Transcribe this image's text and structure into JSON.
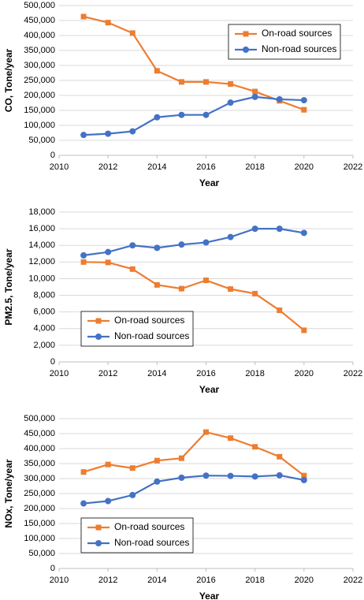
{
  "chart_data": [
    {
      "type": "line",
      "x_label": "Year",
      "y_label": "CO, Tone/year",
      "x": [
        2011,
        2012,
        2013,
        2014,
        2015,
        2016,
        2017,
        2018,
        2019,
        2020
      ],
      "series": [
        {
          "name": "On-road sources",
          "color": "#ed7d31",
          "marker": "square",
          "values": [
            463000,
            443000,
            408000,
            282000,
            245000,
            245000,
            238000,
            213000,
            182000,
            152000
          ]
        },
        {
          "name": "Non-road sources",
          "color": "#4472c4",
          "marker": "circle",
          "values": [
            68000,
            72000,
            80000,
            127000,
            135000,
            135000,
            176000,
            195000,
            187000,
            184000
          ]
        }
      ],
      "xlim": [
        2010,
        2022
      ],
      "xticks": [
        2010,
        2012,
        2014,
        2016,
        2018,
        2020,
        2022
      ],
      "ylim": [
        0,
        500000
      ],
      "yticks": [
        0,
        {
          "value": 50000,
          "label": "50,000"
        },
        {
          "value": 100000,
          "label": "100,000"
        },
        {
          "value": 150000,
          "label": "150,000"
        },
        {
          "value": 200000,
          "label": "200,000"
        },
        {
          "value": 250000,
          "label": "250,000"
        },
        {
          "value": 300000,
          "label": "300,000"
        },
        {
          "value": 350000,
          "label": "350,000"
        },
        {
          "value": 400000,
          "label": "400,000"
        },
        {
          "value": 450000,
          "label": "450,000"
        },
        {
          "value": 500000,
          "label": "500,000"
        }
      ],
      "grid": true,
      "legend_loc": "upper right"
    },
    {
      "type": "line",
      "x_label": "Year",
      "y_label": "PM2.5, Tone/year",
      "x": [
        2011,
        2012,
        2013,
        2014,
        2015,
        2016,
        2017,
        2018,
        2019,
        2020
      ],
      "series": [
        {
          "name": "On-road sources",
          "color": "#ed7d31",
          "marker": "square",
          "values": [
            12000,
            11950,
            11150,
            9250,
            8800,
            9800,
            8750,
            8200,
            6200,
            3800
          ]
        },
        {
          "name": "Non-road sources",
          "color": "#4472c4",
          "marker": "circle",
          "values": [
            12800,
            13200,
            14000,
            13700,
            14100,
            14350,
            15000,
            16000,
            16000,
            15500
          ]
        }
      ],
      "xlim": [
        2010,
        2022
      ],
      "xticks": [
        2010,
        2012,
        2014,
        2016,
        2018,
        2020,
        2022
      ],
      "ylim": [
        0,
        18000
      ],
      "yticks": [
        0,
        {
          "value": 2000,
          "label": "2,000"
        },
        {
          "value": 4000,
          "label": "4,000"
        },
        {
          "value": 6000,
          "label": "6,000"
        },
        {
          "value": 8000,
          "label": "8,000"
        },
        {
          "value": 10000,
          "label": "10,000"
        },
        {
          "value": 12000,
          "label": "12,000"
        },
        {
          "value": 14000,
          "label": "14,000"
        },
        {
          "value": 16000,
          "label": "16,000"
        },
        {
          "value": 18000,
          "label": "18,000"
        }
      ],
      "grid": true,
      "legend_loc": "lower left"
    },
    {
      "type": "line",
      "x_label": "Year",
      "y_label": "NOx, Tone/year",
      "x": [
        2011,
        2012,
        2013,
        2014,
        2015,
        2016,
        2017,
        2018,
        2019,
        2020
      ],
      "series": [
        {
          "name": "On-road sources",
          "color": "#ed7d31",
          "marker": "square",
          "values": [
            322000,
            347000,
            335000,
            360000,
            368000,
            455000,
            435000,
            406000,
            373000,
            310000
          ]
        },
        {
          "name": "Non-road sources",
          "color": "#4472c4",
          "marker": "circle",
          "values": [
            217000,
            225000,
            245000,
            290000,
            303000,
            310000,
            309000,
            307000,
            311000,
            295000
          ]
        }
      ],
      "xlim": [
        2010,
        2022
      ],
      "xticks": [
        2010,
        2012,
        2014,
        2016,
        2018,
        2020,
        2022
      ],
      "ylim": [
        0,
        500000
      ],
      "yticks": [
        0,
        {
          "value": 50000,
          "label": "50,000"
        },
        {
          "value": 100000,
          "label": "100,000"
        },
        {
          "value": 150000,
          "label": "150,000"
        },
        {
          "value": 200000,
          "label": "200,000"
        },
        {
          "value": 250000,
          "label": "250,000"
        },
        {
          "value": 300000,
          "label": "300,000"
        },
        {
          "value": 350000,
          "label": "350,000"
        },
        {
          "value": 400000,
          "label": "400,000"
        },
        {
          "value": 450000,
          "label": "450,000"
        },
        {
          "value": 500000,
          "label": "500,000"
        }
      ],
      "grid": true,
      "legend_loc": "lower left"
    }
  ]
}
